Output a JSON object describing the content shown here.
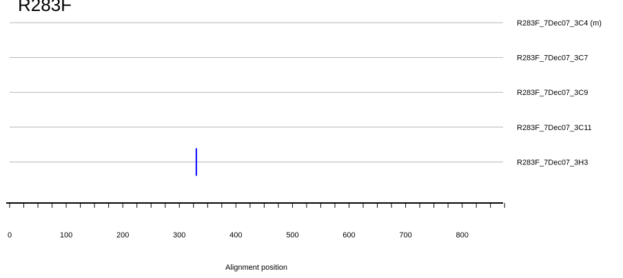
{
  "title": "R283F",
  "chart_data": {
    "type": "alignment",
    "xlabel": "Alignment position",
    "xlim": [
      0,
      875
    ],
    "x_ticks": [
      0,
      100,
      200,
      300,
      400,
      500,
      600,
      700,
      800
    ],
    "minor_tick_step": 25,
    "sequences": [
      {
        "name": "R283F_7Dec07_3C4 (m)",
        "marks": []
      },
      {
        "name": "R283F_7Dec07_3C7",
        "marks": []
      },
      {
        "name": "R283F_7Dec07_3C9",
        "marks": []
      },
      {
        "name": "R283F_7Dec07_3C11",
        "marks": []
      },
      {
        "name": "R283F_7Dec07_3H3",
        "marks": [
          330
        ]
      }
    ],
    "colors": {
      "track": "#b3b3b3",
      "axis": "#000000",
      "mark": "#0000ff"
    }
  }
}
